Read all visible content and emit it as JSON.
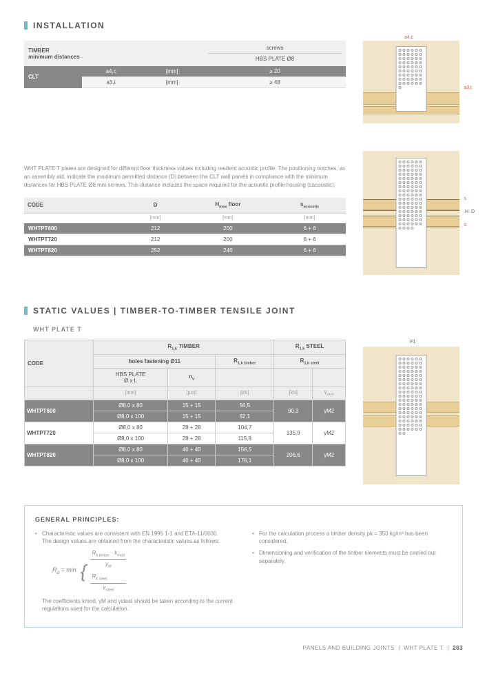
{
  "installation": {
    "title": "INSTALLATION",
    "table1": {
      "header_left": "TIMBER\nminimum distances",
      "header_right_top": "screws",
      "header_right_bottom": "HBS PLATE Ø8",
      "row_label": "CLT",
      "r1_param": "a4,c",
      "r1_unit": "[mm]",
      "r1_val": "≥ 20",
      "r2_param": "a3,t",
      "r2_unit": "[mm]",
      "r2_val": "≥ 48"
    },
    "desc": "WHT PLATE T plates are designed for different floor thickness values including resilient acoustic profile. The positioning notches, as an assembly aid, indicate the maximum permitted distance (D) between the CLT wall panels in compliance with the minimum distances for HBS PLATE Ø8 mm screws. This distance includes the space required for the acoustic profile housing (sacoustic).",
    "table2": {
      "h1": "CODE",
      "h2": "D",
      "h3_pre": "H",
      "h3_sub": "max",
      "h3_post": " floor",
      "h4_pre": "s",
      "h4_sub": "acoustic",
      "u2": "[mm]",
      "u3": "[mm]",
      "u4": "[mm]",
      "rows": [
        {
          "code": "WHTPT600",
          "d": "212",
          "h": "200",
          "s": "6 + 6",
          "cls": "row-dark"
        },
        {
          "code": "WHTPT720",
          "d": "212",
          "h": "200",
          "s": "6 + 6",
          "cls": "row-light"
        },
        {
          "code": "WHTPT820",
          "d": "252",
          "h": "240",
          "s": "6 + 6",
          "cls": "row-dark"
        }
      ]
    },
    "labels": {
      "a4c": "a4,c",
      "a3t": "a3,t",
      "s": "s",
      "H": "H",
      "D": "D"
    }
  },
  "static": {
    "title": "STATIC VALUES | TIMBER-TO-TIMBER TENSILE JOINT",
    "subtitle": "WHT PLATE T",
    "table": {
      "h_timber_top": "R1,k TIMBER",
      "h_steel_top": "R1,k STEEL",
      "h_holes": "holes fastening Ø11",
      "h_r1_timber": "R1,k timber",
      "h_r1_steel": "R1,k steel",
      "h_code": "CODE",
      "h_hbs": "HBS PLATE\nØ x L",
      "h_nv": "nv",
      "u1": "[mm]",
      "u2": "[pcs]",
      "u3": "[kN]",
      "u4": "[kN]",
      "u5": "γsteel",
      "rows": [
        {
          "code": "WHTPT600",
          "hbs1": "Ø8,0 x 80",
          "n1": "15 + 15",
          "t1": "56,5",
          "hbs2": "Ø8,0 x 100",
          "n2": "15 + 15",
          "t2": "62,1",
          "steel": "90,3",
          "g": "γM2",
          "cls": "row-dark"
        },
        {
          "code": "WHTPT720",
          "hbs1": "Ø8,0 x 80",
          "n1": "28 + 28",
          "t1": "104,7",
          "hbs2": "Ø8,0 x 100",
          "n2": "28 + 28",
          "t2": "115,8",
          "steel": "135,9",
          "g": "γM2",
          "cls": "row-light"
        },
        {
          "code": "WHTPT820",
          "hbs1": "Ø8,0 x 80",
          "n1": "40 + 40",
          "t1": "156,5",
          "hbs2": "Ø8,0 x 100",
          "n2": "40 + 40",
          "t2": "176,1",
          "steel": "206,6",
          "g": "γM2",
          "cls": "row-dark"
        }
      ]
    },
    "labels": {
      "f1": "F1"
    }
  },
  "principles": {
    "title": "GENERAL PRINCIPLES:",
    "left": {
      "p1": "Characteristic values are consistent with EN 1995 1-1 and ETA-11/0030.",
      "p2": "The design values are obtained from the characteristic values as follows:",
      "formula_lhs": "Rd = min",
      "f_top_num": "Rk timber · kmod",
      "f_top_den": "γM",
      "f_bot_num": "Rk steel",
      "f_bot_den": "γsteel",
      "p3": "The coefficients kmod, γM and γsteel should be taken according to the current regulations used for the calculation."
    },
    "right": {
      "p1": "For the calculation process a timber density ρk = 350 kg/m³ has been considered.",
      "p2": "Dimensioning and verification of the timber elements must be carried out separately."
    }
  },
  "footer": {
    "left": "PANELS AND BUILDING JOINTS",
    "mid": "WHT PLATE T",
    "page": "263"
  }
}
